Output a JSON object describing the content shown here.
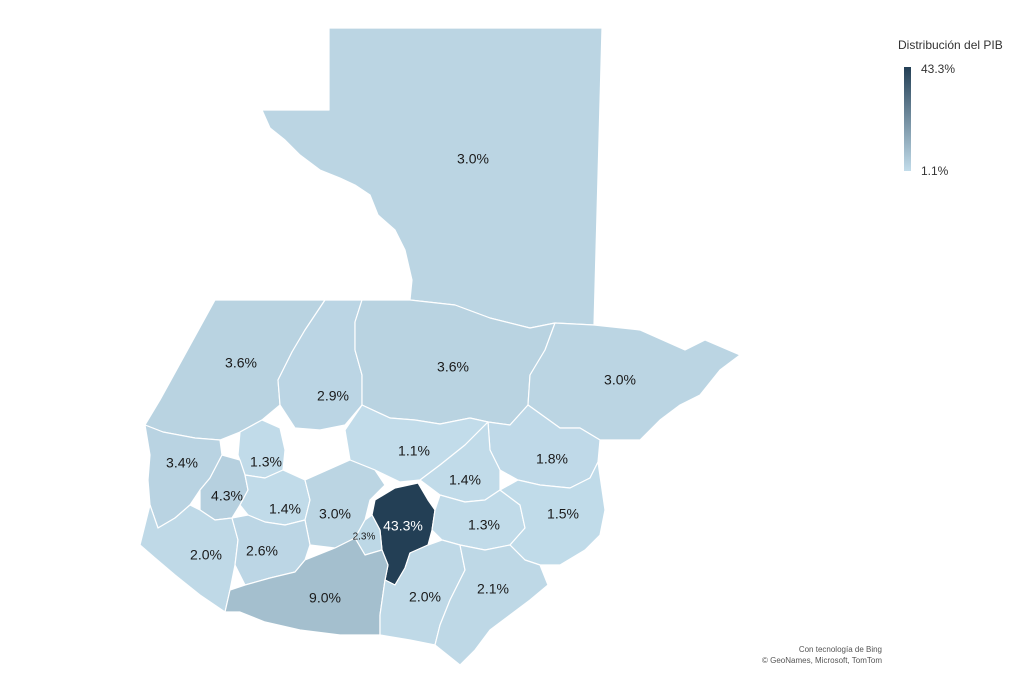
{
  "legend": {
    "title": "Distribución del PIB",
    "max_label": "43.3%",
    "min_label": "1.1%",
    "colors": {
      "low": "#c2dcea",
      "high": "#233f55"
    }
  },
  "regions": [
    {
      "key": "peten",
      "value": 3.0,
      "label": "3.0%"
    },
    {
      "key": "huehuetenango",
      "value": 3.6,
      "label": "3.6%"
    },
    {
      "key": "quiche",
      "value": 2.9,
      "label": "2.9%"
    },
    {
      "key": "alta-verapaz",
      "value": 3.6,
      "label": "3.6%"
    },
    {
      "key": "izabal",
      "value": 3.0,
      "label": "3.0%"
    },
    {
      "key": "san-marcos",
      "value": 3.4,
      "label": "3.4%"
    },
    {
      "key": "totonicapan",
      "value": 1.3,
      "label": "1.3%"
    },
    {
      "key": "baja-verapaz",
      "value": 1.1,
      "label": "1.1%"
    },
    {
      "key": "zacapa",
      "value": 1.8,
      "label": "1.8%"
    },
    {
      "key": "quetzaltenango",
      "value": 4.3,
      "label": "4.3%"
    },
    {
      "key": "solola",
      "value": 1.4,
      "label": "1.4%"
    },
    {
      "key": "el-progreso",
      "value": 1.4,
      "label": "1.4%"
    },
    {
      "key": "chimaltenango",
      "value": 3.0,
      "label": "3.0%"
    },
    {
      "key": "guatemala",
      "value": 43.3,
      "label": "43.3%"
    },
    {
      "key": "sacatepequez",
      "value": 2.3,
      "label": "2.3%"
    },
    {
      "key": "jalapa",
      "value": 1.3,
      "label": "1.3%"
    },
    {
      "key": "chiquimula",
      "value": 1.5,
      "label": "1.5%"
    },
    {
      "key": "retalhuleu",
      "value": 2.0,
      "label": "2.0%"
    },
    {
      "key": "suchitepequez",
      "value": 2.6,
      "label": "2.6%"
    },
    {
      "key": "escuintla",
      "value": 9.0,
      "label": "9.0%"
    },
    {
      "key": "santa-rosa",
      "value": 2.0,
      "label": "2.0%"
    },
    {
      "key": "jutiapa",
      "value": 2.1,
      "label": "2.1%"
    }
  ],
  "attribution": {
    "line1": "Con tecnología de Bing",
    "line2": "© GeoNames, Microsoft, TomTom"
  }
}
